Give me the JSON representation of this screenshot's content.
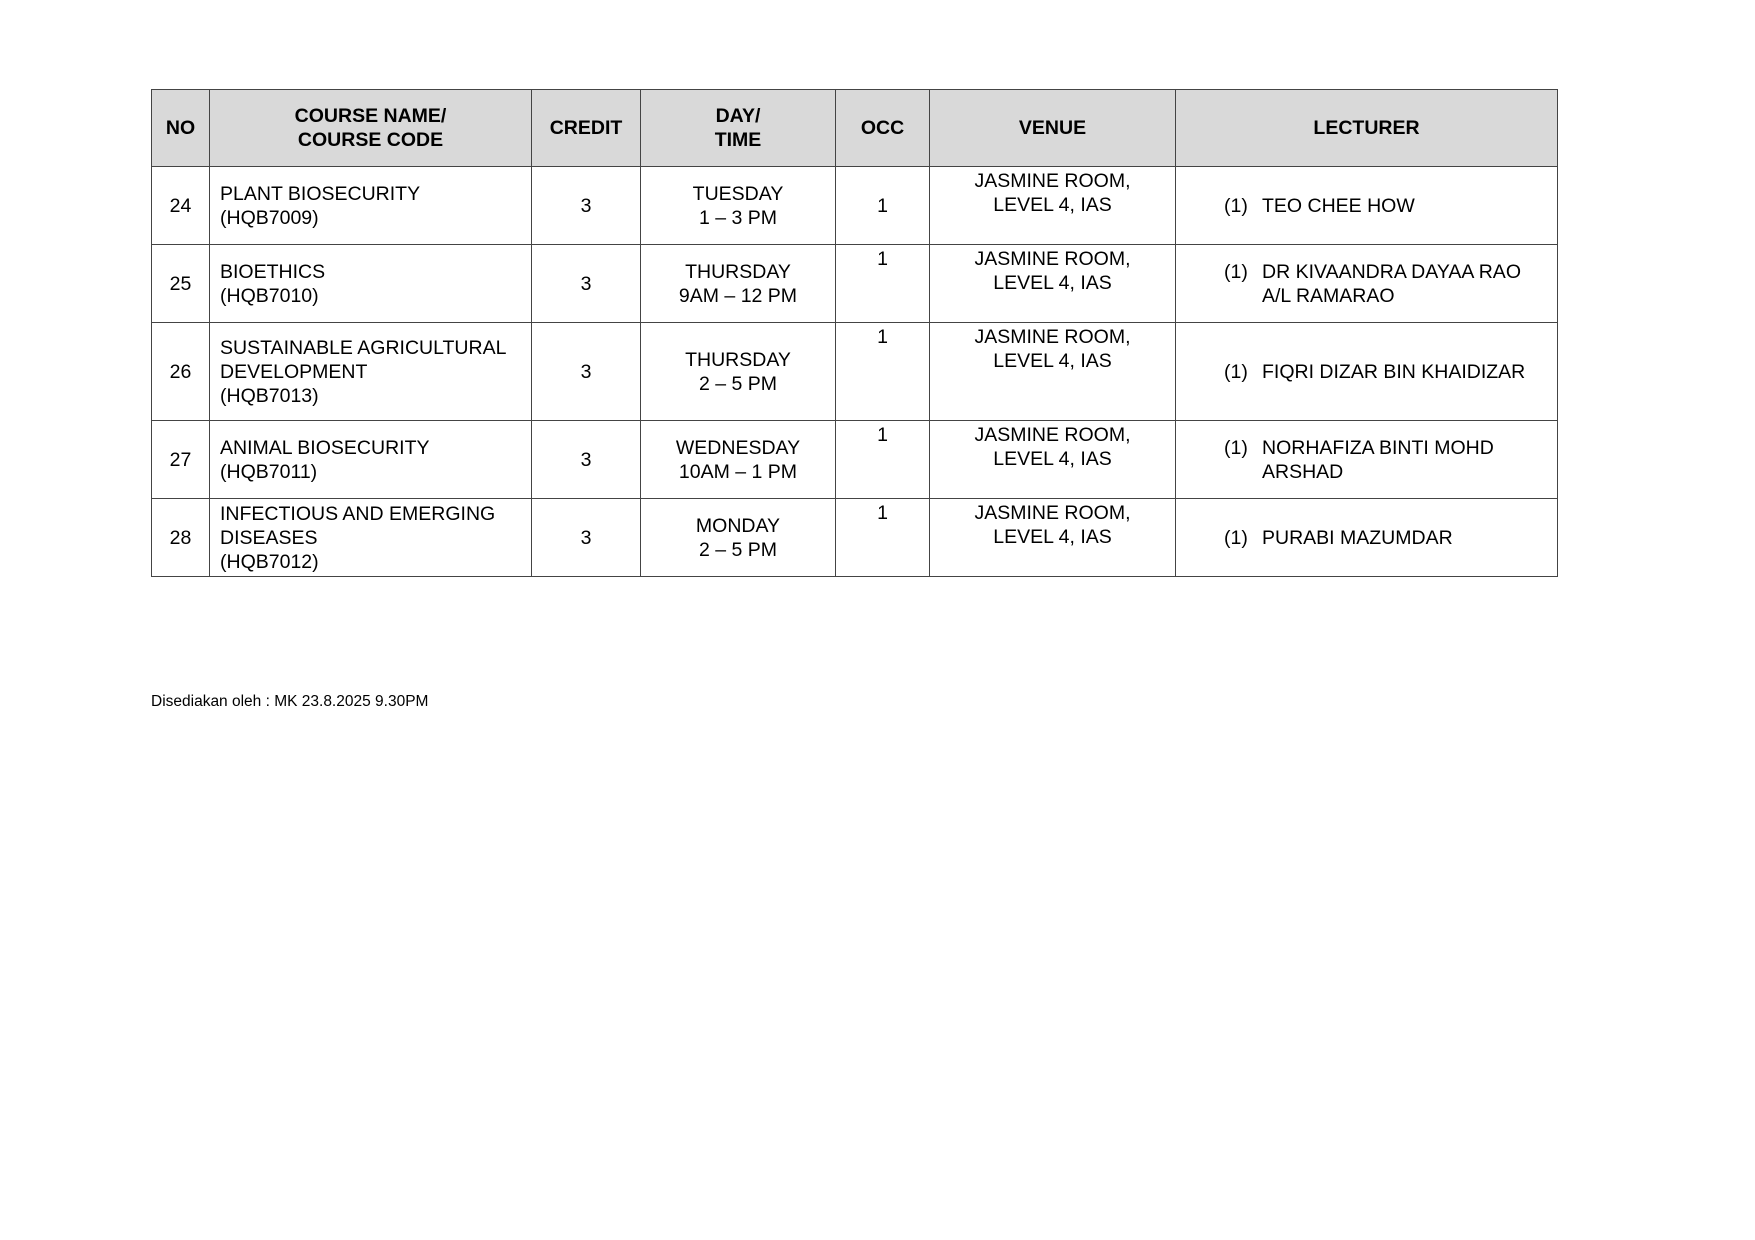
{
  "table": {
    "headers": {
      "no": "NO",
      "course_line1": "COURSE NAME/",
      "course_line2": "COURSE CODE",
      "credit": "CREDIT",
      "day_line1": "DAY/",
      "day_line2": "TIME",
      "occ": "OCC",
      "venue": "VENUE",
      "lecturer": "LECTURER"
    },
    "rows": [
      {
        "no": "24",
        "course": "PLANT BIOSECURITY",
        "code": "(HQB7009)",
        "credit": "3",
        "day": "TUESDAY",
        "time": "1 – 3 PM",
        "occ": "1",
        "venue1": "JASMINE ROOM,",
        "venue2": "LEVEL 4, IAS",
        "lect_no": "(1)",
        "lecturer": "TEO CHEE HOW"
      },
      {
        "no": "25",
        "course": "BIOETHICS",
        "code": "(HQB7010)",
        "credit": "3",
        "day": "THURSDAY",
        "time": "9AM – 12 PM",
        "occ": "1",
        "venue1": "JASMINE ROOM,",
        "venue2": "LEVEL 4, IAS",
        "lect_no": "(1)",
        "lecturer": "DR KIVAANDRA DAYAA RAO A/L RAMARAO"
      },
      {
        "no": "26",
        "course": "SUSTAINABLE AGRICULTURAL DEVELOPMENT",
        "code": "(HQB7013)",
        "credit": "3",
        "day": "THURSDAY",
        "time": "2 – 5 PM",
        "occ": "1",
        "venue1": "JASMINE ROOM,",
        "venue2": "LEVEL 4, IAS",
        "lect_no": "(1)",
        "lecturer": "FIQRI DIZAR BIN KHAIDIZAR"
      },
      {
        "no": "27",
        "course": "ANIMAL BIOSECURITY",
        "code": "(HQB7011)",
        "credit": "3",
        "day": "WEDNESDAY",
        "time": "10AM – 1 PM",
        "occ": "1",
        "venue1": "JASMINE ROOM,",
        "venue2": "LEVEL 4, IAS",
        "lect_no": "(1)",
        "lecturer": "NORHAFIZA BINTI MOHD ARSHAD"
      },
      {
        "no": "28",
        "course": "INFECTIOUS AND EMERGING DISEASES",
        "code": "(HQB7012)",
        "credit": "3",
        "day": "MONDAY",
        "time": "2 – 5 PM",
        "occ": "1",
        "venue1": "JASMINE ROOM,",
        "venue2": "LEVEL 4, IAS",
        "lect_no": "(1)",
        "lecturer": "PURABI MAZUMDAR"
      }
    ]
  },
  "footer": "Disediakan oleh : MK 23.8.2025 9.30PM",
  "colors": {
    "header_bg": "#d9d9d9",
    "border": "#444444"
  }
}
